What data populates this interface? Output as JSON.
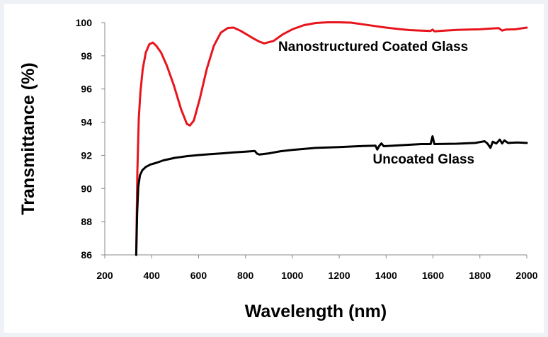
{
  "chart_data": {
    "type": "line",
    "title": "",
    "xlabel": "Wavelength (nm)",
    "ylabel": "Transmittance (%)",
    "xlim": [
      200,
      2000
    ],
    "ylim": [
      86,
      100
    ],
    "x_ticks": [
      200,
      400,
      600,
      800,
      1000,
      1200,
      1400,
      1600,
      1800,
      2000
    ],
    "y_ticks": [
      86,
      88,
      90,
      92,
      94,
      96,
      98,
      100
    ],
    "grid": false,
    "legend": "none",
    "series": [
      {
        "color": "#e8141c",
        "points": [
          [
            334,
            86
          ],
          [
            339,
            91
          ],
          [
            345,
            94.2
          ],
          [
            352,
            95.8
          ],
          [
            362,
            97.2
          ],
          [
            375,
            98.2
          ],
          [
            390,
            98.7
          ],
          [
            405,
            98.8
          ],
          [
            420,
            98.6
          ],
          [
            440,
            98.2
          ],
          [
            465,
            97.4
          ],
          [
            495,
            96.2
          ],
          [
            525,
            94.8
          ],
          [
            550,
            93.9
          ],
          [
            563,
            93.8
          ],
          [
            580,
            94.1
          ],
          [
            605,
            95.4
          ],
          [
            635,
            97.2
          ],
          [
            665,
            98.6
          ],
          [
            695,
            99.4
          ],
          [
            725,
            99.68
          ],
          [
            750,
            99.7
          ],
          [
            780,
            99.5
          ],
          [
            810,
            99.25
          ],
          [
            840,
            99.0
          ],
          [
            860,
            98.85
          ],
          [
            880,
            98.75
          ],
          [
            920,
            98.9
          ],
          [
            960,
            99.3
          ],
          [
            1000,
            99.6
          ],
          [
            1050,
            99.85
          ],
          [
            1100,
            99.98
          ],
          [
            1150,
            100.02
          ],
          [
            1200,
            100.02
          ],
          [
            1250,
            100.0
          ],
          [
            1300,
            99.9
          ],
          [
            1350,
            99.8
          ],
          [
            1400,
            99.7
          ],
          [
            1450,
            99.62
          ],
          [
            1500,
            99.55
          ],
          [
            1550,
            99.52
          ],
          [
            1590,
            99.5
          ],
          [
            1598,
            99.58
          ],
          [
            1606,
            99.48
          ],
          [
            1650,
            99.52
          ],
          [
            1700,
            99.56
          ],
          [
            1750,
            99.58
          ],
          [
            1800,
            99.6
          ],
          [
            1850,
            99.65
          ],
          [
            1880,
            99.67
          ],
          [
            1895,
            99.52
          ],
          [
            1910,
            99.58
          ],
          [
            1950,
            99.6
          ],
          [
            2000,
            99.7
          ]
        ]
      },
      {
        "color": "#000000",
        "points": [
          [
            334,
            86
          ],
          [
            338,
            88.5
          ],
          [
            343,
            90.1
          ],
          [
            350,
            90.8
          ],
          [
            360,
            91.1
          ],
          [
            375,
            91.3
          ],
          [
            395,
            91.45
          ],
          [
            420,
            91.55
          ],
          [
            450,
            91.7
          ],
          [
            500,
            91.85
          ],
          [
            550,
            91.95
          ],
          [
            600,
            92.02
          ],
          [
            650,
            92.07
          ],
          [
            700,
            92.12
          ],
          [
            750,
            92.18
          ],
          [
            800,
            92.22
          ],
          [
            840,
            92.26
          ],
          [
            850,
            92.1
          ],
          [
            860,
            92.05
          ],
          [
            900,
            92.12
          ],
          [
            950,
            92.25
          ],
          [
            1000,
            92.33
          ],
          [
            1100,
            92.45
          ],
          [
            1200,
            92.5
          ],
          [
            1300,
            92.56
          ],
          [
            1355,
            92.58
          ],
          [
            1362,
            92.35
          ],
          [
            1372,
            92.6
          ],
          [
            1380,
            92.72
          ],
          [
            1390,
            92.55
          ],
          [
            1450,
            92.6
          ],
          [
            1550,
            92.68
          ],
          [
            1590,
            92.68
          ],
          [
            1598,
            93.15
          ],
          [
            1606,
            92.68
          ],
          [
            1700,
            92.7
          ],
          [
            1780,
            92.75
          ],
          [
            1820,
            92.85
          ],
          [
            1832,
            92.72
          ],
          [
            1845,
            92.45
          ],
          [
            1855,
            92.82
          ],
          [
            1870,
            92.72
          ],
          [
            1885,
            92.95
          ],
          [
            1895,
            92.72
          ],
          [
            1905,
            92.9
          ],
          [
            1920,
            92.75
          ],
          [
            1960,
            92.78
          ],
          [
            2000,
            92.75
          ]
        ]
      }
    ],
    "annotations": [
      {
        "text": "Nanostructured Coated Glass",
        "x": 1345,
        "y": 98.3
      },
      {
        "text": "Uncoated Glass",
        "x": 1560,
        "y": 91.5
      }
    ]
  }
}
